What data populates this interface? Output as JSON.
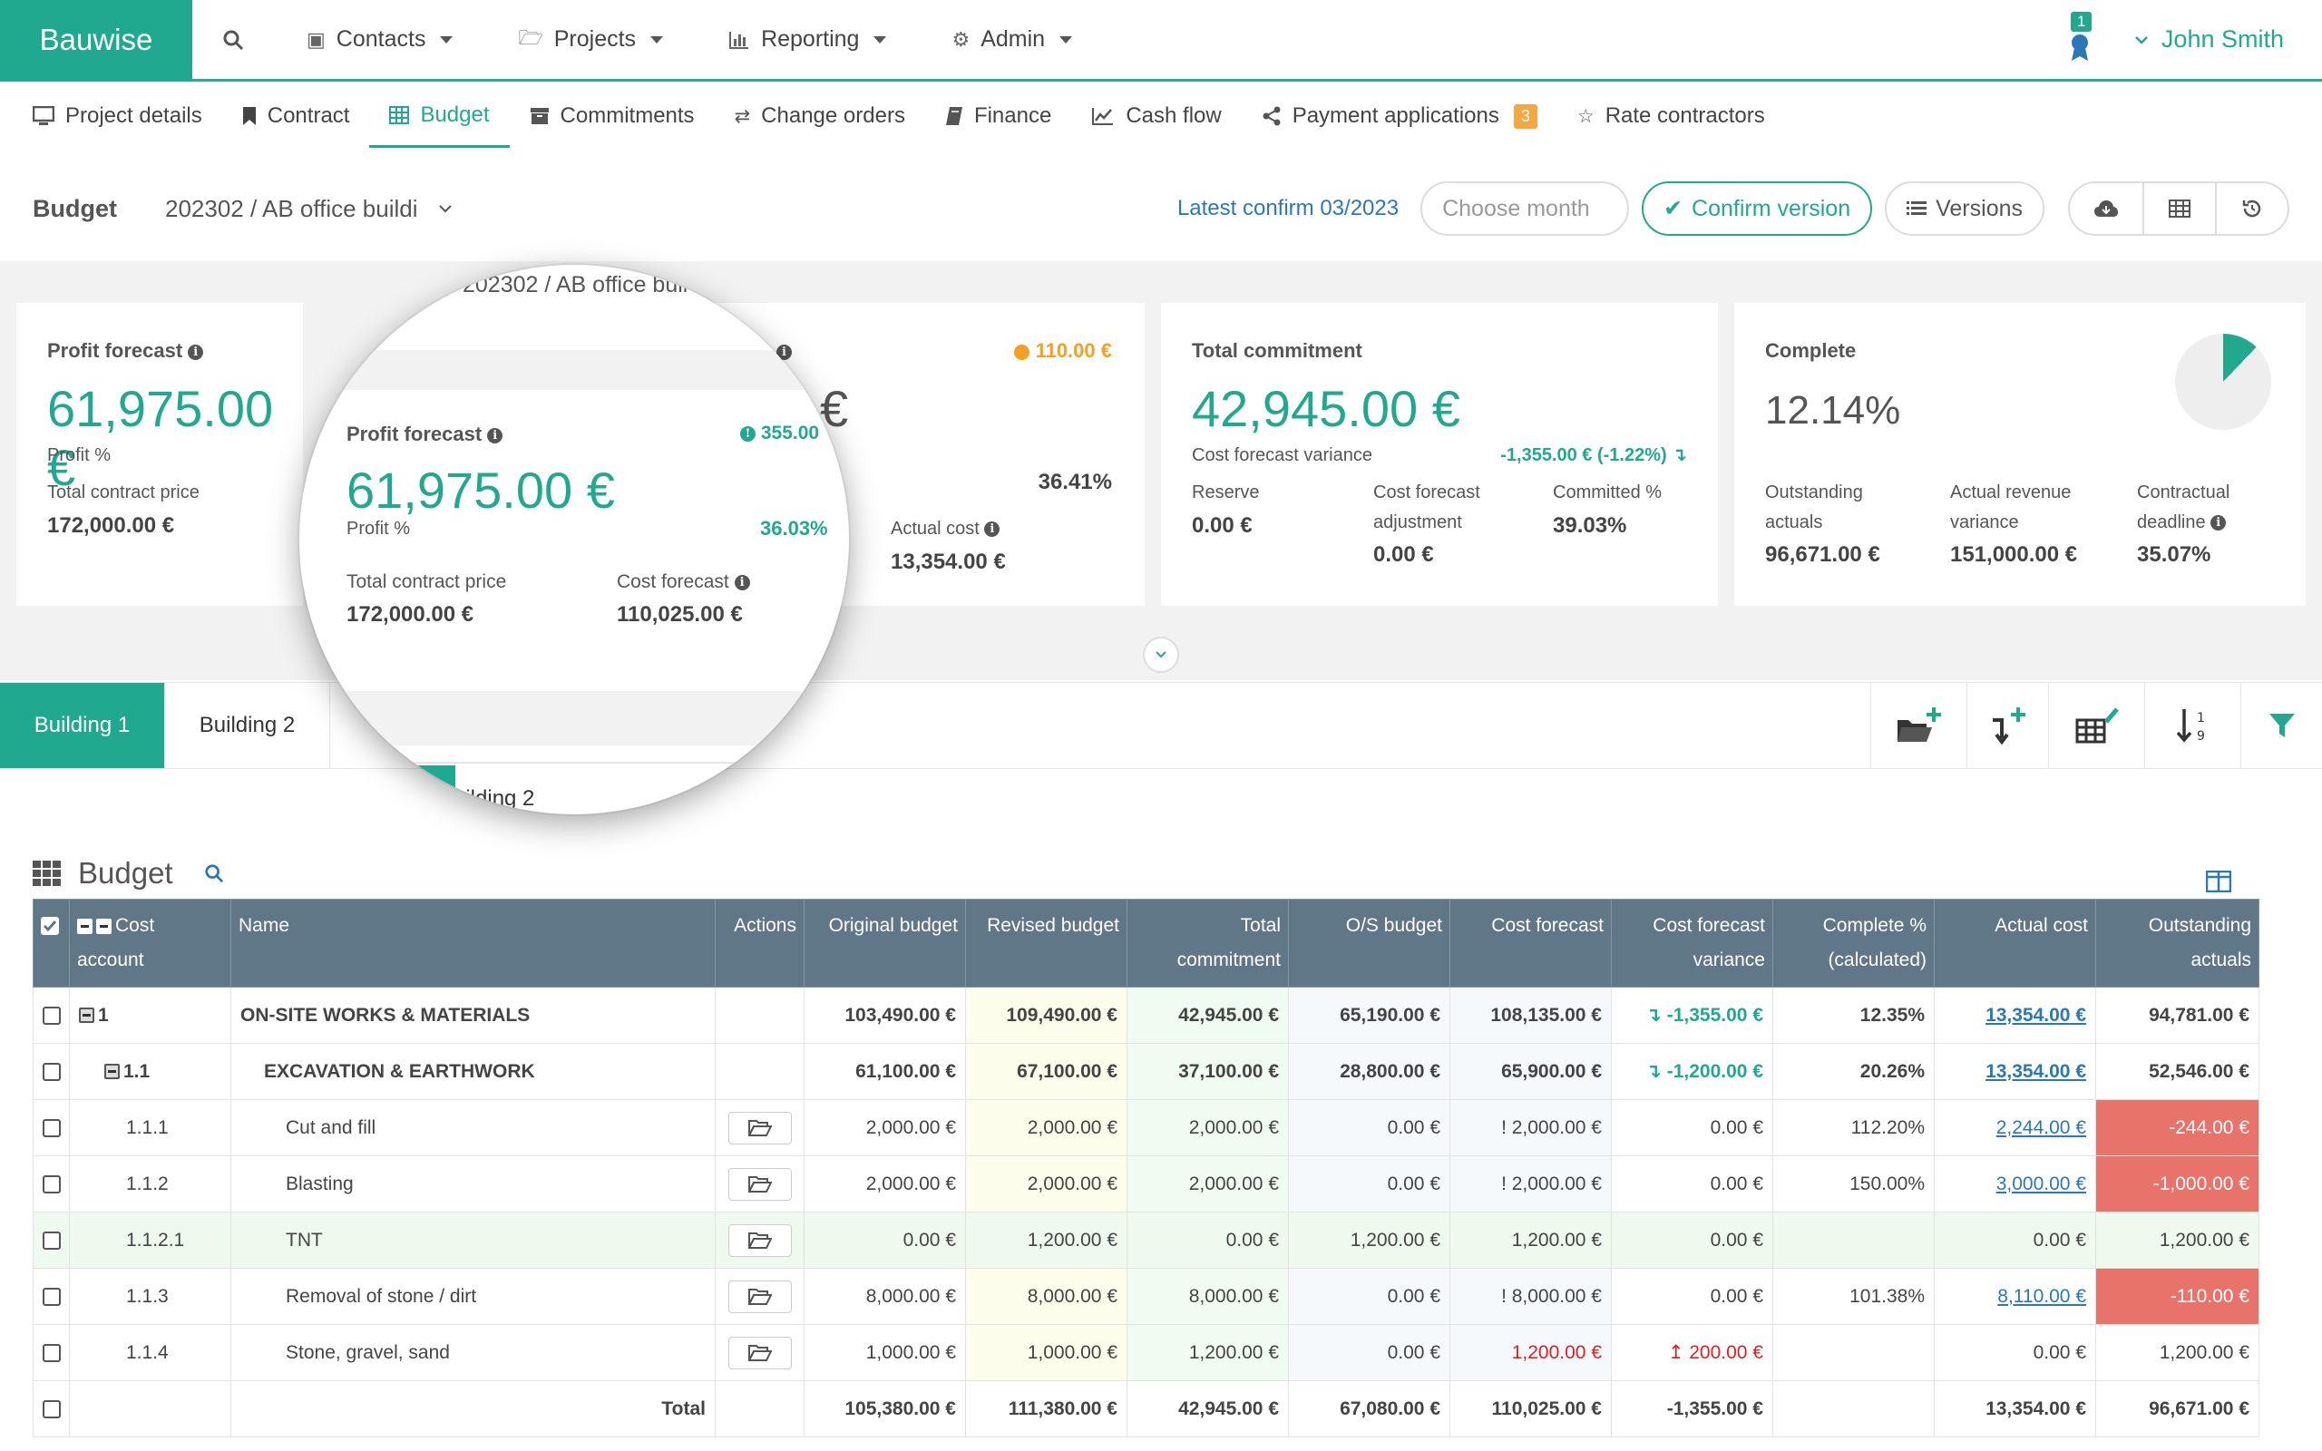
{
  "brand": "Bauwise",
  "nav": [
    {
      "label": "Contacts"
    },
    {
      "label": "Projects"
    },
    {
      "label": "Reporting"
    },
    {
      "label": "Admin"
    }
  ],
  "notifications": {
    "count": "1"
  },
  "user": {
    "name": "John Smith"
  },
  "subtabs": [
    {
      "label": "Project details",
      "icon": "monitor-icon"
    },
    {
      "label": "Contract",
      "icon": "bookmark-icon"
    },
    {
      "label": "Budget",
      "icon": "table-icon",
      "active": true
    },
    {
      "label": "Commitments",
      "icon": "archive-icon"
    },
    {
      "label": "Change orders",
      "icon": "exchange-icon"
    },
    {
      "label": "Finance",
      "icon": "book-icon"
    },
    {
      "label": "Cash flow",
      "icon": "line-chart-icon"
    },
    {
      "label": "Payment applications",
      "icon": "share-icon",
      "badge": "3"
    },
    {
      "label": "Rate contractors",
      "icon": "star-icon"
    }
  ],
  "budget_header": {
    "label": "Budget",
    "project": "202302 / AB office buildi",
    "latest_confirm": "Latest confirm 03/2023",
    "month_placeholder": "Choose month",
    "confirm_label": "Confirm version",
    "versions_label": "Versions"
  },
  "kpi": {
    "profit": {
      "title": "Profit forecast",
      "value": "61,975.00 €",
      "profit_pct_label": "Profit %",
      "total_contract_label": "Total contract price",
      "total_contract_value": "172,000.00 €"
    },
    "cost": {
      "warning": "110.00 €",
      "value_fragment": "€",
      "pct": "36.41%",
      "actual_cost_label": "Actual cost",
      "actual_cost_value": "13,354.00 €"
    },
    "commitment": {
      "title": "Total commitment",
      "value": "42,945.00 €",
      "variance_label": "Cost forecast variance",
      "variance_value": "-1,355.00 € (-1.22%) ↴",
      "reserve_label": "Reserve",
      "reserve_value": "0.00 €",
      "adjustment_label": "Cost forecast adjustment",
      "adjustment_value": "0.00 €",
      "committed_label": "Committed %",
      "committed_value": "39.03%"
    },
    "complete": {
      "title": "Complete",
      "value": "12.14%",
      "fraction": 0.1214,
      "outstanding_label": "Outstanding actuals",
      "outstanding_value": "96,671.00 €",
      "revenue_label": "Actual revenue variance",
      "revenue_value": "151,000.00 €",
      "deadline_label": "Contractual deadline",
      "deadline_value": "35.07%"
    }
  },
  "magnifier": {
    "project": "202302 / AB office buil",
    "title": "Profit forecast",
    "warning": "355.00",
    "value": "61,975.00 €",
    "profit_pct_label": "Profit %",
    "profit_pct_value": "36.03%",
    "total_contract_label": "Total contract price",
    "total_contract_value": "172,000.00 €",
    "cost_forecast_label": "Cost forecast",
    "cost_forecast_value": "110,025.00 €",
    "tab_fragment": "uilding 2"
  },
  "building_tabs": [
    {
      "label": "Building 1",
      "active": true
    },
    {
      "label": "Building 2"
    }
  ],
  "table": {
    "title": "Budget",
    "columns": [
      "Cost account",
      "Name",
      "Actions",
      "Original budget",
      "Revised budget",
      "Total commitment",
      "O/S budget",
      "Cost forecast",
      "Cost forecast variance",
      "Complete % (calculated)",
      "Actual cost",
      "Outstanding actuals"
    ],
    "rows": [
      {
        "code": "1",
        "name": "ON-SITE WORKS & MATERIALS",
        "ob": "103,490.00 €",
        "rb": "109,490.00 €",
        "tc": "42,945.00 €",
        "os": "65,190.00 €",
        "cf": "108,135.00 €",
        "cfv": "↴ -1,355.00 €",
        "cp": "12.35%",
        "ac": "13,354.00 €",
        "oa": "94,781.00 €"
      },
      {
        "code": "1.1",
        "name": "EXCAVATION & EARTHWORK",
        "ob": "61,100.00 €",
        "rb": "67,100.00 €",
        "tc": "37,100.00 €",
        "os": "28,800.00 €",
        "cf": "65,900.00 €",
        "cfv": "↴ -1,200.00 €",
        "cp": "20.26%",
        "ac": "13,354.00 €",
        "oa": "52,546.00 €"
      },
      {
        "code": "1.1.1",
        "name": "Cut and fill",
        "ob": "2,000.00 €",
        "rb": "2,000.00 €",
        "tc": "2,000.00 €",
        "os": "0.00 €",
        "cf": "! 2,000.00 €",
        "cfv": "0.00 €",
        "cp": "112.20%",
        "ac": "2,244.00 €",
        "oa": "-244.00 €"
      },
      {
        "code": "1.1.2",
        "name": "Blasting",
        "ob": "2,000.00 €",
        "rb": "2,000.00 €",
        "tc": "2,000.00 €",
        "os": "0.00 €",
        "cf": "! 2,000.00 €",
        "cfv": "0.00 €",
        "cp": "150.00%",
        "ac": "3,000.00 €",
        "oa": "-1,000.00 €"
      },
      {
        "code": "1.1.2.1",
        "name": "TNT",
        "ob": "0.00 €",
        "rb": "1,200.00 €",
        "tc": "0.00 €",
        "os": "1,200.00 €",
        "cf": "1,200.00 €",
        "cfv": "0.00 €",
        "cp": "",
        "ac": "0.00 €",
        "oa": "1,200.00 €"
      },
      {
        "code": "1.1.3",
        "name": "Removal of stone / dirt",
        "ob": "8,000.00 €",
        "rb": "8,000.00 €",
        "tc": "8,000.00 €",
        "os": "0.00 €",
        "cf": "! 8,000.00 €",
        "cfv": "0.00 €",
        "cp": "101.38%",
        "ac": "8,110.00 €",
        "oa": "-110.00 €"
      },
      {
        "code": "1.1.4",
        "name": "Stone, gravel, sand",
        "ob": "1,000.00 €",
        "rb": "1,000.00 €",
        "tc": "1,200.00 €",
        "os": "0.00 €",
        "cf": "1,200.00 €",
        "cfv": "↥ 200.00 €",
        "cp": "",
        "ac": "0.00 €",
        "oa": "1,200.00 €"
      }
    ],
    "total": {
      "label": "Total",
      "ob": "105,380.00 €",
      "rb": "111,380.00 €",
      "tc": "42,945.00 €",
      "os": "67,080.00 €",
      "cf": "110,025.00 €",
      "cfv": "-1,355.00 €",
      "ac": "13,354.00 €",
      "oa": "96,671.00 €"
    }
  },
  "colors": {
    "accent": "#20a98f",
    "header": "#5f7787",
    "warning": "#f5a020",
    "negative": "#e8736a"
  }
}
